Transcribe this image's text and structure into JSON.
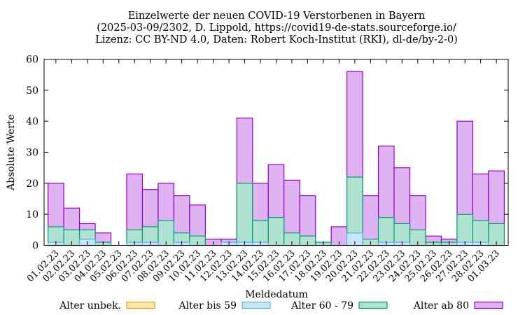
{
  "chart_data": {
    "type": "bar",
    "stacked": true,
    "title": [
      "Einzelwerte der neuen COVID-19 Verstorbenen in Bayern",
      "(2025-03-09/2302, D. Lippold, https://covid19-de-stats.sourceforge.io/",
      "Lizenz: CC BY-ND 4.0, Daten: Robert Koch-Institut (RKI), dl-de/by-2-0)"
    ],
    "xlabel": "Meldedatum",
    "ylabel": "Absolute Werte",
    "ylim": [
      0,
      60
    ],
    "yticks": [
      0,
      10,
      20,
      30,
      40,
      50,
      60
    ],
    "legend_position": "bottom",
    "categories": [
      "01.02.23",
      "02.02.23",
      "03.02.23",
      "04.02.23",
      "05.02.23",
      "06.02.23",
      "07.02.23",
      "08.02.23",
      "09.02.23",
      "10.02.23",
      "11.02.23",
      "12.02.23",
      "13.02.23",
      "14.02.23",
      "15.02.23",
      "16.02.23",
      "17.02.23",
      "18.02.23",
      "19.02.23",
      "20.02.23",
      "21.02.23",
      "22.02.23",
      "23.02.23",
      "24.02.23",
      "25.02.23",
      "26.02.23",
      "27.02.23",
      "28.02.23",
      "01.03.23"
    ],
    "series": [
      {
        "name": "Alter unbek.",
        "fill": "#fce5a8",
        "stroke": "#e3a10c",
        "values": [
          0,
          0,
          0,
          0,
          0,
          0,
          0,
          0,
          0,
          0,
          0,
          0,
          0,
          0,
          0,
          0,
          0,
          0,
          0,
          0,
          0,
          0,
          0,
          0,
          0,
          0,
          0,
          0,
          0
        ]
      },
      {
        "name": "Alter bis 59",
        "fill": "#c6e5f7",
        "stroke": "#56b4e9",
        "values": [
          1,
          0,
          2,
          0,
          0,
          1,
          1,
          0,
          1,
          0,
          0,
          1,
          1,
          1,
          0,
          0,
          0,
          0,
          0,
          4,
          0,
          1,
          1,
          0,
          0,
          0,
          1,
          1,
          0
        ]
      },
      {
        "name": "Alter 60 - 79",
        "fill": "#b0e2d2",
        "stroke": "#009e73",
        "values": [
          5,
          5,
          3,
          1,
          0,
          4,
          5,
          8,
          3,
          3,
          0,
          0,
          19,
          7,
          9,
          4,
          3,
          1,
          0,
          18,
          2,
          8,
          6,
          5,
          1,
          1,
          9,
          7,
          7
        ]
      },
      {
        "name": "Alter ab 80",
        "fill": "#dfb2f2",
        "stroke": "#9400d3",
        "values": [
          14,
          7,
          2,
          3,
          0,
          18,
          12,
          12,
          12,
          10,
          2,
          1,
          21,
          12,
          17,
          17,
          13,
          0,
          6,
          34,
          14,
          23,
          18,
          11,
          2,
          1,
          30,
          15,
          17
        ]
      }
    ]
  }
}
